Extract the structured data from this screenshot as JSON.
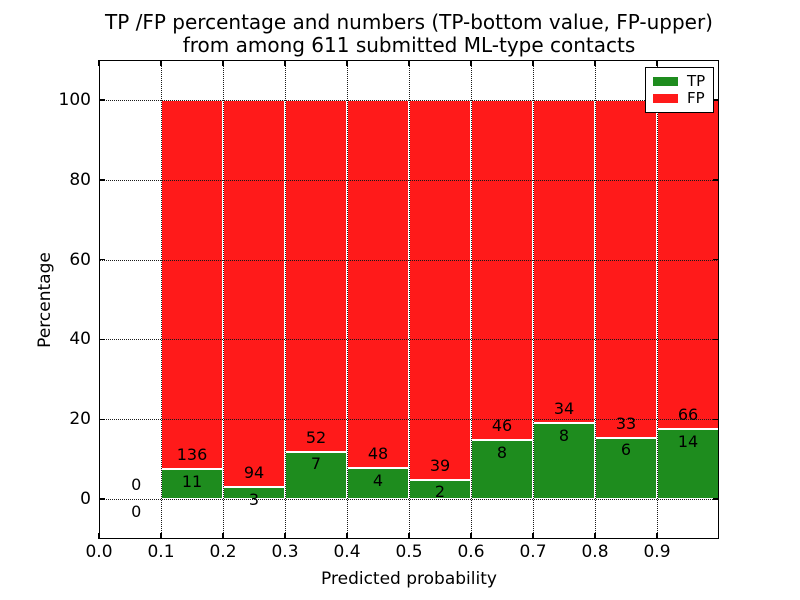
{
  "figure": {
    "title_line1": "TP /FP percentage and numbers (TP-bottom value, FP-upper)",
    "title_line2": "from among 611 submitted ML-type contacts"
  },
  "chart_data": {
    "type": "bar",
    "stacked": true,
    "title": "TP /FP percentage and numbers (TP-bottom value, FP-upper) from among 611 submitted ML-type contacts",
    "xlabel": "Predicted probability",
    "ylabel": "Percentage",
    "xlim": [
      0.0,
      1.0
    ],
    "ylim": [
      -10,
      110
    ],
    "xticks": [
      "0.0",
      "0.1",
      "0.2",
      "0.3",
      "0.4",
      "0.5",
      "0.6",
      "0.7",
      "0.8",
      "0.9"
    ],
    "yticks": [
      0,
      20,
      40,
      60,
      80,
      100
    ],
    "grid": "dotted",
    "legend_position": "upper right",
    "total_contacts": 611,
    "bins": [
      [
        0.0,
        0.1
      ],
      [
        0.1,
        0.2
      ],
      [
        0.2,
        0.3
      ],
      [
        0.3,
        0.4
      ],
      [
        0.4,
        0.5
      ],
      [
        0.5,
        0.6
      ],
      [
        0.6,
        0.7
      ],
      [
        0.7,
        0.8
      ],
      [
        0.8,
        0.9
      ],
      [
        0.9,
        1.0
      ]
    ],
    "series": [
      {
        "name": "TP",
        "color": "#1e8c1e",
        "counts": [
          0,
          11,
          3,
          7,
          4,
          2,
          8,
          8,
          6,
          14
        ]
      },
      {
        "name": "FP",
        "color": "#ff1a1a",
        "counts": [
          0,
          136,
          94,
          52,
          48,
          39,
          46,
          34,
          33,
          66
        ]
      }
    ],
    "bar_height_rule": "TP segment height = tp/(tp+fp)*100, FP fills to 100; labels show raw counts (FP above TP)"
  }
}
